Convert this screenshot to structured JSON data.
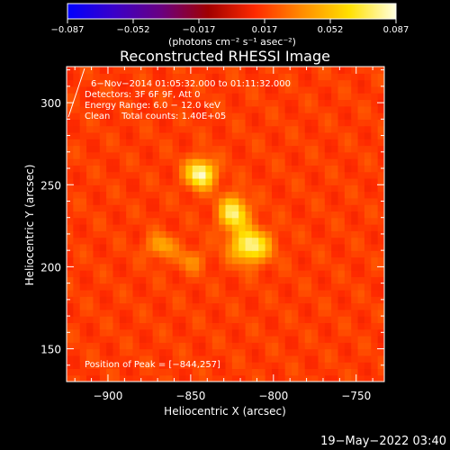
{
  "colorbar": {
    "ticks": [
      "−0.087",
      "−0.052",
      "−0.017",
      "0.017",
      "0.052",
      "0.087"
    ],
    "units_label": "(photons cm⁻² s⁻¹ asec⁻²)",
    "colors": [
      "#0000ff",
      "#3a00c8",
      "#6a0080",
      "#a00000",
      "#ff2a00",
      "#ff8c00",
      "#ffe000",
      "#ffffe0"
    ]
  },
  "chart_data": {
    "type": "heatmap",
    "title": "Reconstructed RHESSI Image",
    "xlabel": "Heliocentric X (arcsec)",
    "ylabel": "Heliocentric Y (arcsec)",
    "xlim": [
      -925,
      -733
    ],
    "ylim": [
      130,
      322
    ],
    "x_ticks": [
      -900,
      -850,
      -800,
      -750
    ],
    "x_tick_labels": [
      "−900",
      "−850",
      "−800",
      "−750"
    ],
    "y_ticks": [
      150,
      200,
      250,
      300
    ],
    "y_tick_labels": [
      "150",
      "200",
      "250",
      "300"
    ],
    "info_lines": [
      "6−Nov−2014 01:05:32.000 to 01:11:32.000",
      "Detectors: 3F 6F 9F, Att 0",
      "Energy Range: 6.0 − 12.0 keV",
      "Clean    Total counts: 1.40E+05"
    ],
    "peak_label": "Position of Peak = [−844,257]",
    "peak": [
      -844,
      257
    ],
    "background_level": 0.017,
    "sources": [
      {
        "x": -844,
        "y": 257,
        "amp": 0.07,
        "sx": 6,
        "sy": 6
      },
      {
        "x": -824,
        "y": 233,
        "amp": 0.06,
        "sx": 6,
        "sy": 7
      },
      {
        "x": -814,
        "y": 213,
        "amp": 0.065,
        "sx": 8,
        "sy": 7
      },
      {
        "x": -868,
        "y": 213,
        "amp": 0.03,
        "sx": 6,
        "sy": 5
      },
      {
        "x": -850,
        "y": 204,
        "amp": 0.02,
        "sx": 6,
        "sy": 5
      }
    ]
  },
  "timestamp": "19−May−2022 03:40"
}
